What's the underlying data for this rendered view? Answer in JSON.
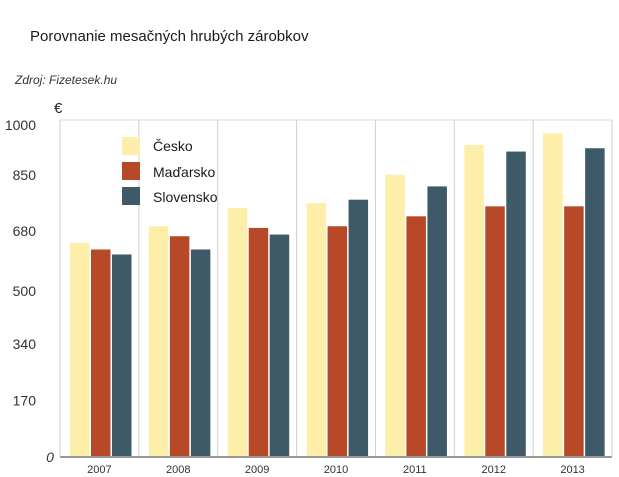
{
  "chart_data": {
    "type": "bar",
    "title": "Porovnanie mesačných hrubých zárobkov",
    "source": "Zdroj: Fizetesek.hu",
    "ylabel": "€",
    "categories": [
      "2007",
      "2008",
      "2009",
      "2010",
      "2011",
      "2012",
      "2013"
    ],
    "series": [
      {
        "name": "Česko",
        "color": "#FDEEAA",
        "values": [
          645,
          695,
          750,
          765,
          850,
          940,
          975
        ]
      },
      {
        "name": "Maďarsko",
        "color": "#B84928",
        "values": [
          625,
          665,
          690,
          695,
          725,
          755,
          755
        ]
      },
      {
        "name": "Slovensko",
        "color": "#3E5A68",
        "values": [
          610,
          625,
          670,
          775,
          815,
          920,
          930
        ]
      }
    ],
    "ylim": [
      0,
      1000
    ],
    "yticks": [
      0,
      170,
      340,
      500,
      680,
      850,
      1000
    ],
    "grid": false,
    "category_separators": true,
    "legend": "top-left"
  }
}
